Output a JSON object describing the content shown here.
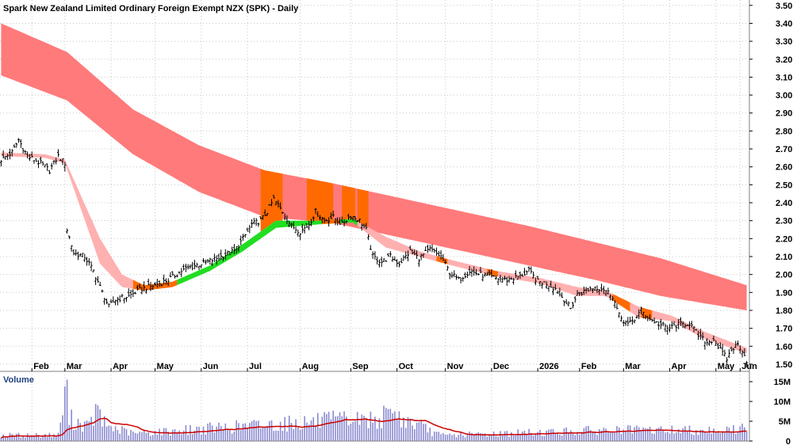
{
  "chart_data": {
    "type": "candlestick",
    "title": "Spark New Zealand Limited Ordinary Foreign Exempt NZX (SPK) - Daily",
    "price_axis": {
      "ticks": [
        "3.50",
        "3.40",
        "3.30",
        "3.20",
        "3.10",
        "3.00",
        "2.90",
        "2.80",
        "2.70",
        "2.60",
        "2.50",
        "2.40",
        "2.30",
        "2.20",
        "2.10",
        "2.00",
        "1.90",
        "1.80",
        "1.70",
        "1.60",
        "1.50"
      ],
      "ylim": [
        1.46,
        3.53
      ]
    },
    "x_labels": [
      "Feb",
      "Mar",
      "Apr",
      "May",
      "Jun",
      "Jul",
      "Aug",
      "Sep",
      "Oct",
      "Nov",
      "Dec",
      "2026",
      "Feb",
      "Mar",
      "Apr",
      "May",
      "Jun"
    ],
    "volume_panel": {
      "label": "Volume",
      "ticks": [
        "15M",
        "10M",
        "5M",
        "0"
      ],
      "ylim": [
        0,
        16
      ]
    },
    "close_anchors": [
      {
        "t": 0,
        "v": 2.64
      },
      {
        "t": 5,
        "v": 2.68
      },
      {
        "t": 8,
        "v": 2.75
      },
      {
        "t": 12,
        "v": 2.66
      },
      {
        "t": 15,
        "v": 2.64
      },
      {
        "t": 18,
        "v": 2.62
      },
      {
        "t": 22,
        "v": 2.58
      },
      {
        "t": 26,
        "v": 2.66
      },
      {
        "t": 29,
        "v": 2.62
      },
      {
        "t": 30,
        "v": 2.25
      },
      {
        "t": 33,
        "v": 2.12
      },
      {
        "t": 38,
        "v": 2.1
      },
      {
        "t": 42,
        "v": 2.02
      },
      {
        "t": 46,
        "v": 1.9
      },
      {
        "t": 49,
        "v": 1.82
      },
      {
        "t": 52,
        "v": 1.86
      },
      {
        "t": 58,
        "v": 1.88
      },
      {
        "t": 64,
        "v": 1.92
      },
      {
        "t": 70,
        "v": 1.94
      },
      {
        "t": 76,
        "v": 1.97
      },
      {
        "t": 82,
        "v": 2.02
      },
      {
        "t": 88,
        "v": 2.05
      },
      {
        "t": 94,
        "v": 2.07
      },
      {
        "t": 100,
        "v": 2.1
      },
      {
        "t": 106,
        "v": 2.13
      },
      {
        "t": 110,
        "v": 2.2
      },
      {
        "t": 114,
        "v": 2.28
      },
      {
        "t": 118,
        "v": 2.3
      },
      {
        "t": 121,
        "v": 2.35
      },
      {
        "t": 124,
        "v": 2.42
      },
      {
        "t": 128,
        "v": 2.35
      },
      {
        "t": 132,
        "v": 2.27
      },
      {
        "t": 136,
        "v": 2.24
      },
      {
        "t": 140,
        "v": 2.28
      },
      {
        "t": 143,
        "v": 2.35
      },
      {
        "t": 147,
        "v": 2.3
      },
      {
        "t": 151,
        "v": 2.32
      },
      {
        "t": 155,
        "v": 2.28
      },
      {
        "t": 159,
        "v": 2.33
      },
      {
        "t": 163,
        "v": 2.3
      },
      {
        "t": 166,
        "v": 2.25
      },
      {
        "t": 169,
        "v": 2.1
      },
      {
        "t": 173,
        "v": 2.07
      },
      {
        "t": 177,
        "v": 2.1
      },
      {
        "t": 181,
        "v": 2.06
      },
      {
        "t": 186,
        "v": 2.13
      },
      {
        "t": 190,
        "v": 2.09
      },
      {
        "t": 195,
        "v": 2.14
      },
      {
        "t": 200,
        "v": 2.1
      },
      {
        "t": 204,
        "v": 2.01
      },
      {
        "t": 208,
        "v": 1.97
      },
      {
        "t": 213,
        "v": 2.02
      },
      {
        "t": 218,
        "v": 2.0
      },
      {
        "t": 224,
        "v": 1.98
      },
      {
        "t": 230,
        "v": 1.97
      },
      {
        "t": 236,
        "v": 1.99
      },
      {
        "t": 240,
        "v": 2.02
      },
      {
        "t": 244,
        "v": 1.96
      },
      {
        "t": 248,
        "v": 1.95
      },
      {
        "t": 252,
        "v": 1.92
      },
      {
        "t": 256,
        "v": 1.86
      },
      {
        "t": 259,
        "v": 1.81
      },
      {
        "t": 262,
        "v": 1.89
      },
      {
        "t": 266,
        "v": 1.91
      },
      {
        "t": 270,
        "v": 1.93
      },
      {
        "t": 274,
        "v": 1.92
      },
      {
        "t": 278,
        "v": 1.88
      },
      {
        "t": 281,
        "v": 1.77
      },
      {
        "t": 285,
        "v": 1.72
      },
      {
        "t": 288,
        "v": 1.75
      },
      {
        "t": 291,
        "v": 1.8
      },
      {
        "t": 294,
        "v": 1.76
      },
      {
        "t": 298,
        "v": 1.73
      },
      {
        "t": 303,
        "v": 1.7
      },
      {
        "t": 308,
        "v": 1.72
      },
      {
        "t": 313,
        "v": 1.73
      },
      {
        "t": 317,
        "v": 1.66
      },
      {
        "t": 321,
        "v": 1.62
      },
      {
        "t": 324,
        "v": 1.64
      },
      {
        "t": 327,
        "v": 1.58
      },
      {
        "t": 330,
        "v": 1.53
      },
      {
        "t": 332,
        "v": 1.58
      },
      {
        "t": 335,
        "v": 1.61
      },
      {
        "t": 337,
        "v": 1.58
      },
      {
        "t": 339,
        "v": 1.52
      }
    ],
    "long_ribbon": {
      "upper": [
        {
          "t": 0,
          "v": 3.4
        },
        {
          "t": 30,
          "v": 3.24
        },
        {
          "t": 60,
          "v": 2.92
        },
        {
          "t": 90,
          "v": 2.72
        },
        {
          "t": 120,
          "v": 2.58
        },
        {
          "t": 150,
          "v": 2.51
        },
        {
          "t": 180,
          "v": 2.43
        },
        {
          "t": 210,
          "v": 2.35
        },
        {
          "t": 240,
          "v": 2.27
        },
        {
          "t": 270,
          "v": 2.18
        },
        {
          "t": 300,
          "v": 2.09
        },
        {
          "t": 339,
          "v": 1.94
        }
      ],
      "lower": [
        {
          "t": 0,
          "v": 3.11
        },
        {
          "t": 30,
          "v": 2.97
        },
        {
          "t": 60,
          "v": 2.67
        },
        {
          "t": 90,
          "v": 2.46
        },
        {
          "t": 120,
          "v": 2.32
        },
        {
          "t": 150,
          "v": 2.29
        },
        {
          "t": 180,
          "v": 2.21
        },
        {
          "t": 210,
          "v": 2.13
        },
        {
          "t": 240,
          "v": 2.05
        },
        {
          "t": 270,
          "v": 1.97
        },
        {
          "t": 300,
          "v": 1.88
        },
        {
          "t": 339,
          "v": 1.8
        }
      ],
      "color": "#ff7a7a"
    },
    "short_ribbon": {
      "upper": [
        {
          "t": 0,
          "v": 2.68
        },
        {
          "t": 20,
          "v": 2.67
        },
        {
          "t": 29,
          "v": 2.64
        },
        {
          "t": 45,
          "v": 2.2
        },
        {
          "t": 55,
          "v": 2.0
        },
        {
          "t": 65,
          "v": 1.94
        },
        {
          "t": 78,
          "v": 1.96
        },
        {
          "t": 95,
          "v": 2.05
        },
        {
          "t": 110,
          "v": 2.17
        },
        {
          "t": 125,
          "v": 2.3
        },
        {
          "t": 145,
          "v": 2.3
        },
        {
          "t": 160,
          "v": 2.31
        },
        {
          "t": 175,
          "v": 2.21
        },
        {
          "t": 190,
          "v": 2.13
        },
        {
          "t": 205,
          "v": 2.08
        },
        {
          "t": 225,
          "v": 2.02
        },
        {
          "t": 245,
          "v": 1.98
        },
        {
          "t": 262,
          "v": 1.93
        },
        {
          "t": 275,
          "v": 1.91
        },
        {
          "t": 290,
          "v": 1.82
        },
        {
          "t": 305,
          "v": 1.77
        },
        {
          "t": 320,
          "v": 1.68
        },
        {
          "t": 339,
          "v": 1.59
        }
      ],
      "lower": [
        {
          "t": 0,
          "v": 2.66
        },
        {
          "t": 20,
          "v": 2.65
        },
        {
          "t": 29,
          "v": 2.62
        },
        {
          "t": 45,
          "v": 2.06
        },
        {
          "t": 55,
          "v": 1.93
        },
        {
          "t": 65,
          "v": 1.91
        },
        {
          "t": 78,
          "v": 1.93
        },
        {
          "t": 95,
          "v": 2.02
        },
        {
          "t": 110,
          "v": 2.13
        },
        {
          "t": 125,
          "v": 2.26
        },
        {
          "t": 145,
          "v": 2.28
        },
        {
          "t": 160,
          "v": 2.29
        },
        {
          "t": 175,
          "v": 2.15
        },
        {
          "t": 190,
          "v": 2.1
        },
        {
          "t": 205,
          "v": 2.05
        },
        {
          "t": 225,
          "v": 1.99
        },
        {
          "t": 245,
          "v": 1.95
        },
        {
          "t": 262,
          "v": 1.88
        },
        {
          "t": 275,
          "v": 1.88
        },
        {
          "t": 290,
          "v": 1.76
        },
        {
          "t": 305,
          "v": 1.74
        },
        {
          "t": 320,
          "v": 1.64
        },
        {
          "t": 339,
          "v": 1.56
        }
      ],
      "colors": {
        "bearish": "#ffb0b0",
        "bullish": "#22dd22",
        "transition": "#ff6a00"
      },
      "bullish_ranges": [
        [
          80,
          146
        ],
        [
          154,
          162
        ]
      ],
      "transition_ranges": [
        [
          60,
          80
        ],
        [
          125,
          154
        ],
        [
          198,
          203
        ],
        [
          221,
          226
        ],
        [
          278,
          286
        ],
        [
          291,
          296
        ]
      ]
    },
    "highlight_bars": {
      "color": "#ff6a00",
      "ranges": [
        [
          118,
          128
        ],
        [
          139,
          145
        ],
        [
          145,
          151
        ],
        [
          155,
          161
        ],
        [
          162,
          167
        ]
      ]
    },
    "volume_anchors": [
      {
        "t": 0,
        "v": 1.5
      },
      {
        "t": 26,
        "v": 1.6
      },
      {
        "t": 30,
        "v": 15.5
      },
      {
        "t": 31,
        "v": 6.0
      },
      {
        "t": 40,
        "v": 3.8
      },
      {
        "t": 44,
        "v": 9.0
      },
      {
        "t": 46,
        "v": 5.0
      },
      {
        "t": 50,
        "v": 3.6
      },
      {
        "t": 60,
        "v": 2.0
      },
      {
        "t": 150,
        "v": 5.5
      },
      {
        "t": 170,
        "v": 5.8
      },
      {
        "t": 178,
        "v": 7.0
      },
      {
        "t": 200,
        "v": 1.5
      },
      {
        "t": 270,
        "v": 2.8
      },
      {
        "t": 335,
        "v": 3.0
      },
      {
        "t": 339,
        "v": 4.0
      }
    ],
    "volume_ma_color": "#cc0000",
    "colors": {
      "candle": "#000000",
      "volume_bar": "#8a8ad0",
      "grid": "#c8c8c8",
      "axis_line": "#7f7f7f"
    }
  }
}
